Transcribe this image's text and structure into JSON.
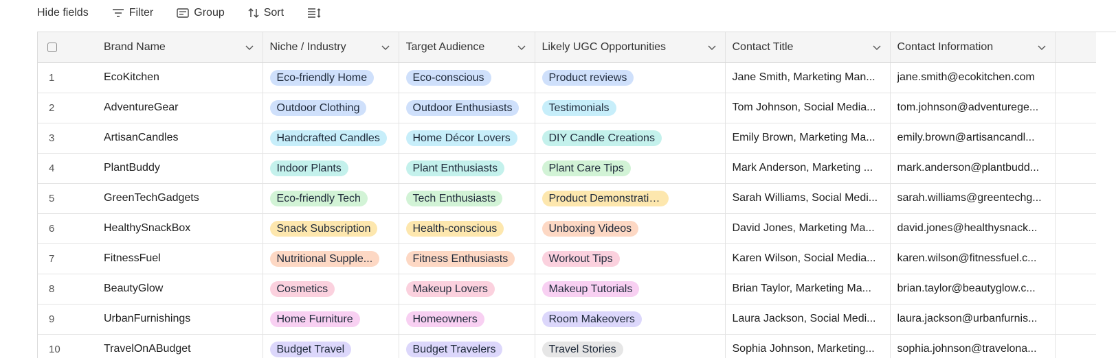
{
  "toolbar": {
    "hide_fields": "Hide fields",
    "filter": "Filter",
    "group": "Group",
    "sort": "Sort",
    "row_height_icon": "row-height-icon"
  },
  "colors": {
    "blue": "#cfe0fb",
    "cyan": "#c7eefa",
    "teal": "#c4f1ec",
    "green": "#d2f3d6",
    "yellow": "#fde7ae",
    "orange": "#fdd8c4",
    "pink": "#fbd1de",
    "magenta": "#f8d0f2",
    "purple": "#dcd7fb",
    "gray": "#e6e6e6"
  },
  "columns": [
    {
      "key": "brand",
      "label": "Brand Name"
    },
    {
      "key": "niche",
      "label": "Niche / Industry"
    },
    {
      "key": "audience",
      "label": "Target Audience"
    },
    {
      "key": "ugc",
      "label": "Likely UGC Opportunities"
    },
    {
      "key": "contact_title",
      "label": "Contact Title"
    },
    {
      "key": "contact_info",
      "label": "Contact Information"
    }
  ],
  "rows": [
    {
      "num": "1",
      "brand": "EcoKitchen",
      "niche": {
        "text": "Eco-friendly Home",
        "color": "blue"
      },
      "audience": {
        "text": "Eco-conscious",
        "color": "blue"
      },
      "ugc": {
        "text": "Product reviews",
        "color": "blue"
      },
      "contact_title": "Jane Smith, Marketing Man...",
      "contact_info": "jane.smith@ecokitchen.com"
    },
    {
      "num": "2",
      "brand": "AdventureGear",
      "niche": {
        "text": "Outdoor Clothing",
        "color": "blue"
      },
      "audience": {
        "text": "Outdoor Enthusiasts",
        "color": "blue"
      },
      "ugc": {
        "text": "Testimonials",
        "color": "cyan"
      },
      "contact_title": "Tom Johnson, Social Media...",
      "contact_info": "tom.johnson@adventurege..."
    },
    {
      "num": "3",
      "brand": "ArtisanCandles",
      "niche": {
        "text": "Handcrafted Candles",
        "color": "cyan"
      },
      "audience": {
        "text": "Home Décor Lovers",
        "color": "cyan"
      },
      "ugc": {
        "text": "DIY Candle Creations",
        "color": "teal"
      },
      "contact_title": "Emily Brown, Marketing Ma...",
      "contact_info": "emily.brown@artisancandl..."
    },
    {
      "num": "4",
      "brand": "PlantBuddy",
      "niche": {
        "text": "Indoor Plants",
        "color": "teal"
      },
      "audience": {
        "text": "Plant Enthusiasts",
        "color": "teal"
      },
      "ugc": {
        "text": "Plant Care Tips",
        "color": "green"
      },
      "contact_title": "Mark Anderson, Marketing ...",
      "contact_info": "mark.anderson@plantbudd..."
    },
    {
      "num": "5",
      "brand": "GreenTechGadgets",
      "niche": {
        "text": "Eco-friendly Tech",
        "color": "green"
      },
      "audience": {
        "text": "Tech Enthusiasts",
        "color": "green"
      },
      "ugc": {
        "text": "Product Demonstrations",
        "color": "yellow"
      },
      "contact_title": "Sarah Williams, Social Medi...",
      "contact_info": "sarah.williams@greentechg..."
    },
    {
      "num": "6",
      "brand": "HealthySnackBox",
      "niche": {
        "text": "Snack Subscription",
        "color": "yellow"
      },
      "audience": {
        "text": "Health-conscious",
        "color": "yellow"
      },
      "ugc": {
        "text": "Unboxing Videos",
        "color": "orange"
      },
      "contact_title": "David Jones, Marketing Ma...",
      "contact_info": "david.jones@healthysnack..."
    },
    {
      "num": "7",
      "brand": "FitnessFuel",
      "niche": {
        "text": "Nutritional Supple...",
        "color": "orange"
      },
      "audience": {
        "text": "Fitness Enthusiasts",
        "color": "orange"
      },
      "ugc": {
        "text": "Workout Tips",
        "color": "pink"
      },
      "contact_title": "Karen Wilson, Social Media...",
      "contact_info": "karen.wilson@fitnessfuel.c..."
    },
    {
      "num": "8",
      "brand": "BeautyGlow",
      "niche": {
        "text": "Cosmetics",
        "color": "pink"
      },
      "audience": {
        "text": "Makeup Lovers",
        "color": "pink"
      },
      "ugc": {
        "text": "Makeup Tutorials",
        "color": "magenta"
      },
      "contact_title": "Brian Taylor, Marketing Ma...",
      "contact_info": "brian.taylor@beautyglow.c..."
    },
    {
      "num": "9",
      "brand": "UrbanFurnishings",
      "niche": {
        "text": "Home Furniture",
        "color": "magenta"
      },
      "audience": {
        "text": "Homeowners",
        "color": "magenta"
      },
      "ugc": {
        "text": "Room Makeovers",
        "color": "purple"
      },
      "contact_title": "Laura Jackson, Social Medi...",
      "contact_info": "laura.jackson@urbanfurnis..."
    },
    {
      "num": "10",
      "brand": "TravelOnABudget",
      "niche": {
        "text": "Budget Travel",
        "color": "purple"
      },
      "audience": {
        "text": "Budget Travelers",
        "color": "purple"
      },
      "ugc": {
        "text": "Travel Stories",
        "color": "gray"
      },
      "contact_title": "Sophia Johnson, Marketing...",
      "contact_info": "sophia.johnson@travelona..."
    }
  ]
}
